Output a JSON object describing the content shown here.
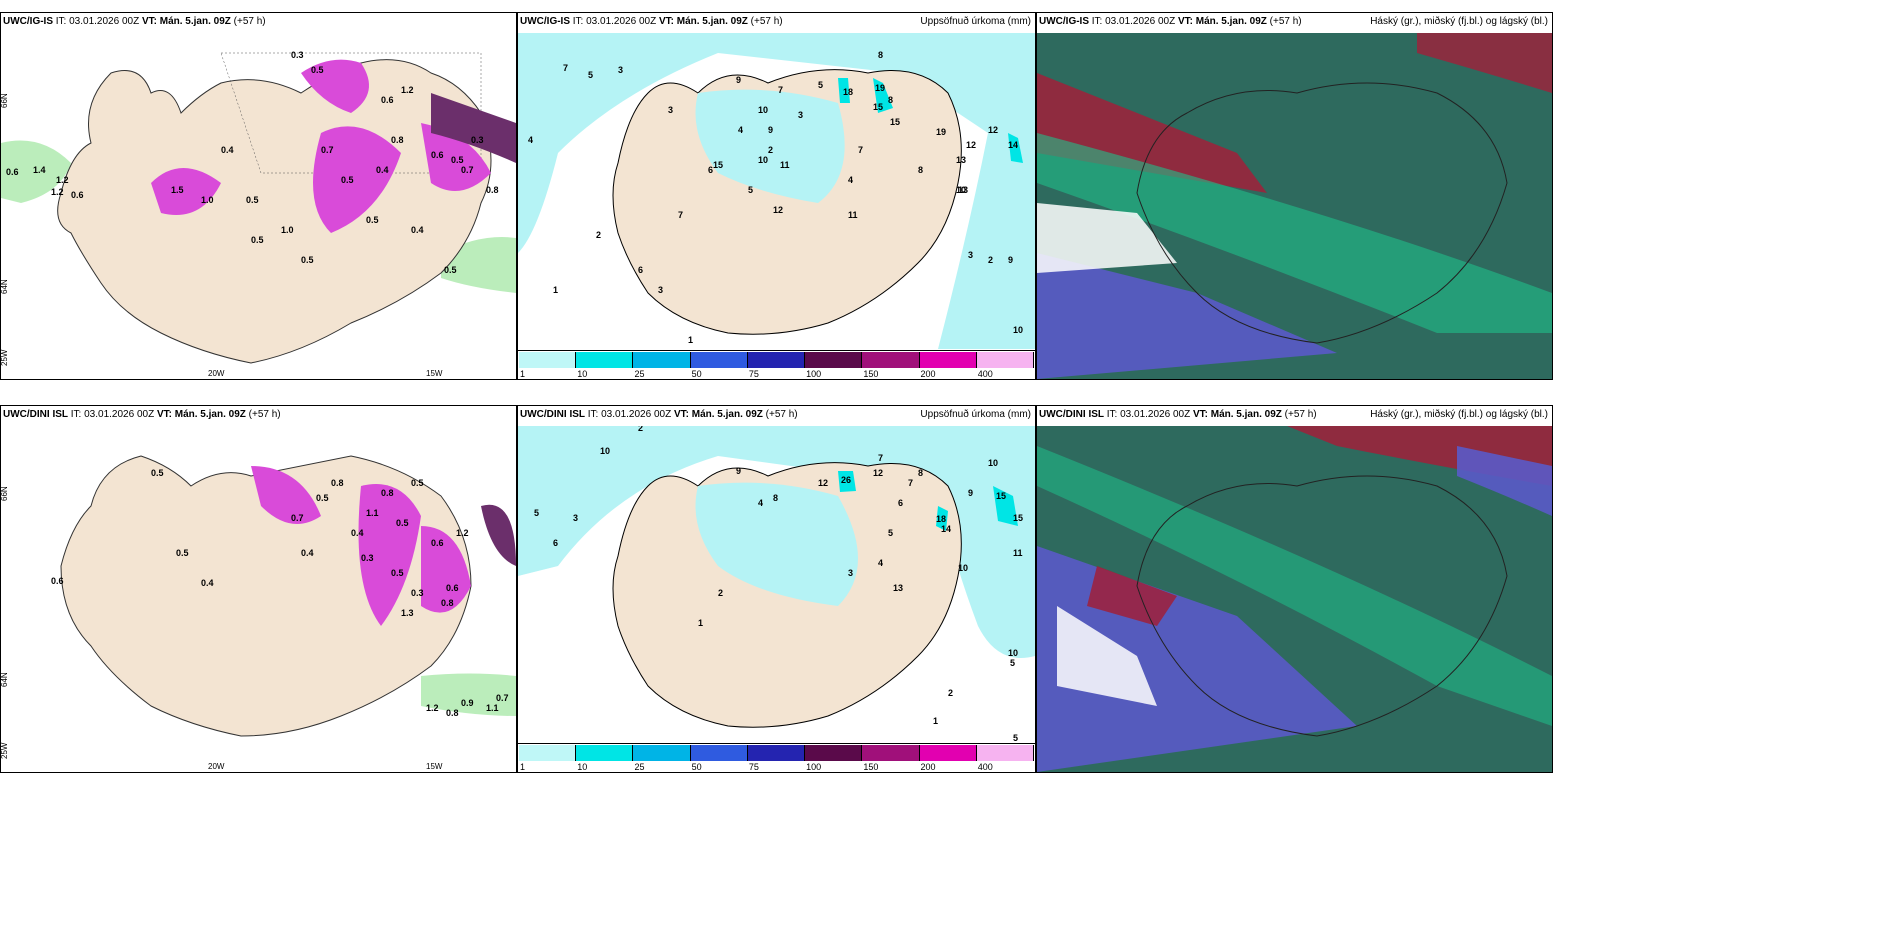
{
  "rows": [
    {
      "model": "UWC/IG-IS",
      "it": "IT: 03.01.2026 00Z",
      "vt_label": "VT:",
      "vt": "Mán. 5.jan. 09Z",
      "lead": "(+57 h)",
      "left_numbers": [
        "0.6",
        "1.4",
        "1.2",
        "1.2",
        "0.6",
        "0.5",
        "0.3",
        "0.5",
        "1.5",
        "1.0",
        "0.5",
        "0.5",
        "0.4",
        "0.8",
        "0.7",
        "0.5",
        "0.3",
        "0.5",
        "0.4",
        "0.6",
        "1.2",
        "1.0",
        "0.5",
        "0.4",
        "0.7",
        "0.8",
        "0.6",
        "0.5"
      ],
      "mid_numbers": [
        "7",
        "5",
        "3",
        "9",
        "4",
        "10",
        "7",
        "3",
        "8",
        "5",
        "3",
        "4",
        "2",
        "9",
        "10",
        "11",
        "7",
        "8",
        "18",
        "19",
        "15",
        "15",
        "19",
        "12",
        "13",
        "12",
        "10",
        "14",
        "8",
        "6",
        "5",
        "4",
        "3",
        "2",
        "1",
        "15",
        "12",
        "11",
        "13",
        "7",
        "6",
        "3",
        "2",
        "1",
        "9",
        "10"
      ],
      "axis_lat_top": "66N",
      "axis_lat_bottom": "64N",
      "axis_lat_corner": "25W",
      "axis_lon_left": "20W",
      "axis_lon_right": "15W"
    },
    {
      "model": "UWC/DINI ISL",
      "it": "IT: 03.01.2026 00Z",
      "vt_label": "VT:",
      "vt": "Mán. 5.jan. 09Z",
      "lead": "(+57 h)",
      "left_numbers": [
        "0.6",
        "0.5",
        "0.8",
        "0.5",
        "0.4",
        "1.1",
        "0.8",
        "0.5",
        "0.7",
        "0.3",
        "0.5",
        "0.6",
        "1.2",
        "0.8",
        "0.4",
        "0.5",
        "0.3",
        "0.6",
        "1.1",
        "0.7",
        "0.5",
        "0.4",
        "0.8",
        "1.3",
        "1.2",
        "0.9"
      ],
      "mid_numbers": [
        "2",
        "3",
        "6",
        "10",
        "5",
        "9",
        "4",
        "8",
        "7",
        "12",
        "26",
        "12",
        "15",
        "15",
        "18",
        "14",
        "11",
        "10",
        "9",
        "8",
        "7",
        "6",
        "5",
        "4",
        "3",
        "2",
        "1",
        "13",
        "10",
        "10",
        "5",
        "5",
        "2",
        "1"
      ],
      "axis_lat_top": "66N",
      "axis_lat_bottom": "64N",
      "axis_lat_corner": "25W",
      "axis_lon_left": "20W",
      "axis_lon_right": "15W"
    }
  ],
  "precip_title": "Uppsöfnuð úrkoma (mm)",
  "cloud_title": "Háský (gr.), miðský (fj.bl.) og lágský (bl.)",
  "colorbar": {
    "ticks": [
      "1",
      "10",
      "25",
      "50",
      "75",
      "100",
      "150",
      "200",
      "400"
    ],
    "colors": [
      "#bff7f7",
      "#00e5e5",
      "#00b4e6",
      "#2f5be0",
      "#2424b0",
      "#5a0a4a",
      "#a0107a",
      "#e200b0",
      "#f6b3f0"
    ]
  },
  "colors": {
    "land": "#f3e4d2",
    "sea_light": "#b5f3f5",
    "wind_pink": "#d94bd9",
    "dark_purple": "#6b2f6b",
    "green_light": "#9ee69e",
    "cloud_teal": "#2e6a5e",
    "cloud_green": "#1fbf8a",
    "cloud_red": "#a0203a",
    "cloud_blue": "#5a5ac8"
  }
}
